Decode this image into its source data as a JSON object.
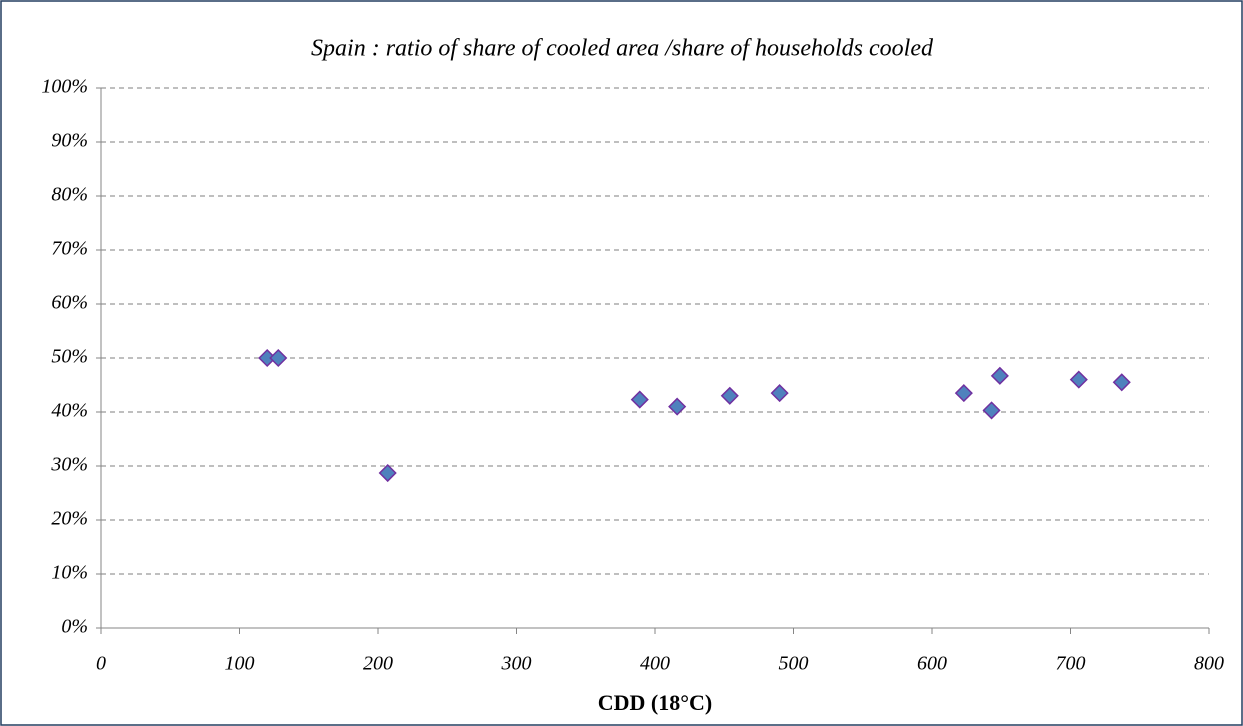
{
  "chart_data": {
    "type": "scatter",
    "title": "Spain : ratio of share of cooled area /share of households cooled",
    "x_label": "CDD (18°C)",
    "series": [
      {
        "color": "#4f81bd",
        "edge_color": "#7030a0",
        "x": [
          120,
          128,
          207,
          389,
          416,
          454,
          490,
          623,
          643,
          649,
          706,
          737
        ],
        "values": [
          50,
          50,
          28.7,
          42.3,
          41,
          43,
          43.5,
          43.5,
          40.3,
          46.7,
          46,
          45.5
        ]
      }
    ],
    "xlim": [
      0,
      800
    ],
    "xticks": [
      0,
      100,
      200,
      300,
      400,
      500,
      600,
      700,
      800
    ],
    "ylim": [
      0,
      100
    ],
    "yticks": [
      {
        "value": 0,
        "label": "0%"
      },
      {
        "value": 10,
        "label": "10%"
      },
      {
        "value": 20,
        "label": "20%"
      },
      {
        "value": 30,
        "label": "30%"
      },
      {
        "value": 40,
        "label": "40%"
      },
      {
        "value": 50,
        "label": "50%"
      },
      {
        "value": 60,
        "label": "60%"
      },
      {
        "value": 70,
        "label": "70%"
      },
      {
        "value": 80,
        "label": "80%"
      },
      {
        "value": 90,
        "label": "90%"
      },
      {
        "value": 100,
        "label": "100%"
      }
    ],
    "grid": true
  }
}
